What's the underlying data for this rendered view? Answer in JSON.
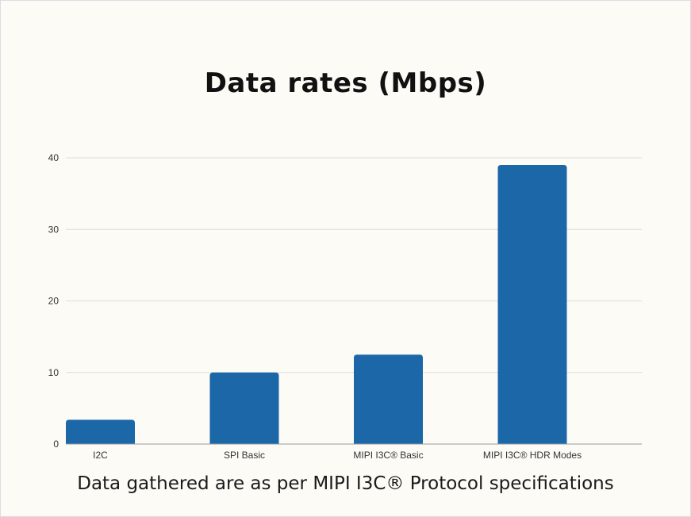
{
  "chart_data": {
    "type": "bar",
    "title": "Data rates (Mbps)",
    "categories": [
      "I2C",
      "SPI Basic",
      "MIPI I3C® Basic",
      "MIPI I3C® HDR Modes"
    ],
    "values": [
      3.4,
      10,
      12.5,
      39
    ],
    "ylim": [
      0,
      40
    ],
    "yticks": [
      0,
      10,
      20,
      30,
      40
    ],
    "xlabel": "",
    "ylabel": "",
    "grid": true,
    "bar_color": "#1b67a8"
  },
  "caption": "Data gathered are as per MIPI I3C® Protocol specifications"
}
